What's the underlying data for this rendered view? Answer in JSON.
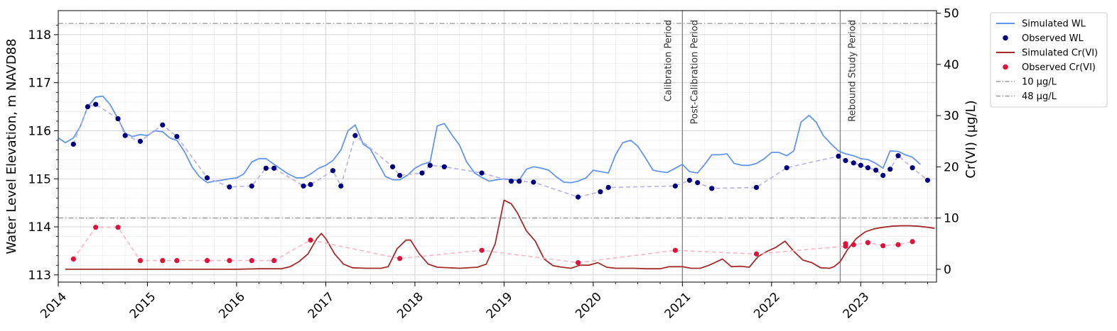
{
  "chart_data": {
    "type": "line",
    "x_axis": {
      "range": [
        2014.0,
        2023.85
      ],
      "ticks": [
        2014,
        2015,
        2016,
        2017,
        2018,
        2019,
        2020,
        2021,
        2022,
        2023
      ],
      "tick_labels": [
        "2014",
        "2015",
        "2016",
        "2017",
        "2018",
        "2019",
        "2020",
        "2021",
        "2022",
        "2023"
      ],
      "label": ""
    },
    "y_left": {
      "label": "Water Level Elevation, m NAVD88",
      "range": [
        112.85,
        118.5
      ],
      "ticks": [
        113,
        114,
        115,
        116,
        117,
        118
      ],
      "tick_labels": [
        "113",
        "114",
        "115",
        "116",
        "117",
        "118"
      ]
    },
    "y_right": {
      "label": "Cr(VI) (µg/L)",
      "range": [
        -2.5,
        50.5
      ],
      "ticks": [
        0,
        10,
        20,
        30,
        40,
        50
      ],
      "tick_labels": [
        "0",
        "10",
        "20",
        "30",
        "40",
        "50"
      ]
    },
    "grid": true,
    "legend_position": "outside-right",
    "periods": [
      {
        "label": "Calibration Period",
        "x": 2021.0,
        "side": "left"
      },
      {
        "label": "Post-Calibration Period",
        "x": 2021.0,
        "side": "right"
      },
      {
        "label": "Rebound Study Period",
        "x": 2022.77,
        "side": "right"
      }
    ],
    "reference_lines": [
      {
        "name": "10 µg/L",
        "value": 10,
        "color": "#888888"
      },
      {
        "name": "48 µg/L",
        "value": 48,
        "color": "#888888"
      }
    ],
    "series": [
      {
        "name": "Simulated WL",
        "kind": "line",
        "axis": "left",
        "color": "#6495ed",
        "x": [
          2014.0,
          2014.08,
          2014.17,
          2014.25,
          2014.33,
          2014.42,
          2014.5,
          2014.58,
          2014.67,
          2014.75,
          2014.83,
          2014.92,
          2015.0,
          2015.08,
          2015.17,
          2015.25,
          2015.33,
          2015.42,
          2015.5,
          2015.58,
          2015.67,
          2015.75,
          2015.83,
          2015.92,
          2016.0,
          2016.08,
          2016.17,
          2016.25,
          2016.33,
          2016.42,
          2016.5,
          2016.58,
          2016.67,
          2016.75,
          2016.83,
          2016.92,
          2017.0,
          2017.08,
          2017.17,
          2017.25,
          2017.33,
          2017.42,
          2017.5,
          2017.58,
          2017.67,
          2017.75,
          2017.83,
          2017.92,
          2018.0,
          2018.08,
          2018.17,
          2018.25,
          2018.33,
          2018.42,
          2018.5,
          2018.58,
          2018.67,
          2018.75,
          2018.83,
          2018.92,
          2019.0,
          2019.08,
          2019.17,
          2019.25,
          2019.33,
          2019.42,
          2019.5,
          2019.58,
          2019.67,
          2019.75,
          2019.83,
          2019.92,
          2020.0,
          2020.08,
          2020.17,
          2020.25,
          2020.33,
          2020.42,
          2020.5,
          2020.58,
          2020.67,
          2020.75,
          2020.83,
          2020.92,
          2021.0,
          2021.08,
          2021.17,
          2021.25,
          2021.33,
          2021.42,
          2021.5,
          2021.58,
          2021.67,
          2021.75,
          2021.83,
          2021.92,
          2022.0,
          2022.08,
          2022.17,
          2022.25,
          2022.33,
          2022.42,
          2022.5,
          2022.58,
          2022.67,
          2022.75,
          2022.83,
          2022.92,
          2023.0,
          2023.08,
          2023.17,
          2023.25,
          2023.33,
          2023.42,
          2023.5,
          2023.58,
          2023.67
        ],
        "y": [
          115.85,
          115.75,
          115.85,
          116.1,
          116.5,
          116.7,
          116.72,
          116.55,
          116.25,
          115.95,
          115.88,
          115.92,
          115.9,
          116.0,
          115.98,
          115.85,
          115.8,
          115.55,
          115.25,
          115.05,
          114.92,
          114.95,
          114.97,
          115.0,
          115.02,
          115.1,
          115.35,
          115.42,
          115.42,
          115.3,
          115.2,
          115.1,
          115.02,
          115.02,
          115.1,
          115.22,
          115.28,
          115.38,
          115.6,
          116.0,
          116.12,
          115.72,
          115.62,
          115.35,
          115.05,
          114.98,
          114.98,
          115.08,
          115.22,
          115.3,
          115.35,
          116.1,
          116.15,
          115.9,
          115.7,
          115.35,
          115.12,
          115.03,
          114.95,
          114.98,
          115.0,
          114.98,
          114.97,
          115.2,
          115.25,
          115.22,
          115.18,
          115.05,
          114.93,
          114.92,
          114.95,
          115.02,
          115.18,
          115.15,
          115.12,
          115.5,
          115.75,
          115.8,
          115.68,
          115.45,
          115.18,
          115.15,
          115.13,
          115.22,
          115.3,
          115.15,
          115.12,
          115.3,
          115.5,
          115.5,
          115.52,
          115.32,
          115.28,
          115.28,
          115.32,
          115.42,
          115.55,
          115.55,
          115.48,
          115.58,
          116.18,
          116.32,
          116.18,
          115.9,
          115.72,
          115.58,
          115.52,
          115.48,
          115.42,
          115.4,
          115.32,
          115.22,
          115.58,
          115.57,
          115.5,
          115.45,
          115.3
        ]
      },
      {
        "name": "Observed WL",
        "kind": "scatter",
        "axis": "left",
        "color": "#000080",
        "connector_color": "#b6b3e0",
        "x": [
          2014.17,
          2014.33,
          2014.42,
          2014.67,
          2014.75,
          2014.92,
          2015.17,
          2015.33,
          2015.67,
          2015.92,
          2016.17,
          2016.33,
          2016.42,
          2016.75,
          2016.83,
          2017.08,
          2017.17,
          2017.33,
          2017.75,
          2017.83,
          2018.08,
          2018.17,
          2018.33,
          2018.75,
          2019.08,
          2019.17,
          2019.33,
          2019.83,
          2020.08,
          2020.17,
          2020.92,
          2021.08,
          2021.17,
          2021.33,
          2021.83,
          2022.17,
          2022.75,
          2022.83,
          2022.92,
          2023.0,
          2023.08,
          2023.17,
          2023.25,
          2023.33,
          2023.42,
          2023.58,
          2023.75
        ],
        "y": [
          115.72,
          116.5,
          116.55,
          116.25,
          115.9,
          115.78,
          116.12,
          115.88,
          115.02,
          114.83,
          114.85,
          115.22,
          115.22,
          114.85,
          114.88,
          115.17,
          114.85,
          115.9,
          115.25,
          115.07,
          115.12,
          115.28,
          115.25,
          115.12,
          114.95,
          114.95,
          114.93,
          114.62,
          114.73,
          114.82,
          114.85,
          114.97,
          114.92,
          114.8,
          114.82,
          115.23,
          115.47,
          115.38,
          115.33,
          115.28,
          115.23,
          115.18,
          115.07,
          115.2,
          115.48,
          115.23,
          114.97
        ]
      },
      {
        "name": "Simulated Cr(VI)",
        "kind": "line",
        "axis": "right",
        "color": "#a52a2a",
        "x": [
          2014.08,
          2014.25,
          2014.5,
          2014.75,
          2015.0,
          2015.5,
          2016.0,
          2016.25,
          2016.5,
          2016.6,
          2016.7,
          2016.8,
          2016.9,
          2016.95,
          2017.0,
          2017.1,
          2017.2,
          2017.3,
          2017.45,
          2017.62,
          2017.7,
          2017.8,
          2017.9,
          2017.95,
          2018.05,
          2018.15,
          2018.25,
          2018.5,
          2018.7,
          2018.8,
          2018.9,
          2019.0,
          2019.08,
          2019.15,
          2019.25,
          2019.35,
          2019.45,
          2019.55,
          2019.65,
          2019.75,
          2019.85,
          2019.95,
          2020.05,
          2020.15,
          2020.25,
          2020.45,
          2020.6,
          2020.75,
          2020.85,
          2021.0,
          2021.1,
          2021.2,
          2021.3,
          2021.45,
          2021.55,
          2021.65,
          2021.75,
          2021.85,
          2021.95,
          2022.05,
          2022.15,
          2022.25,
          2022.35,
          2022.45,
          2022.55,
          2022.65,
          2022.7,
          2022.77,
          2022.85,
          2022.95,
          2023.05,
          2023.15,
          2023.25,
          2023.35,
          2023.45,
          2023.55,
          2023.65,
          2023.75,
          2023.83
        ],
        "y": [
          0,
          0,
          0,
          0,
          0,
          0,
          0,
          0.1,
          0.1,
          0.5,
          1.5,
          3,
          6,
          7,
          6,
          3,
          1,
          0.3,
          0.2,
          0.2,
          0.5,
          4,
          5.7,
          5.7,
          3,
          1,
          0.4,
          0.2,
          0.4,
          1,
          5,
          13.5,
          12.8,
          11,
          7.5,
          5.5,
          2,
          0.7,
          0.4,
          0.2,
          0.8,
          0.8,
          1.3,
          0.4,
          0.2,
          0.2,
          0.1,
          0.1,
          0.5,
          0.5,
          0.2,
          0.2,
          0.8,
          2,
          0.5,
          0.6,
          0.4,
          2.5,
          3.5,
          4.3,
          5.5,
          3.5,
          1.8,
          1.3,
          0.3,
          0.2,
          0.5,
          1.5,
          3.8,
          6,
          7.3,
          7.9,
          8.2,
          8.4,
          8.5,
          8.5,
          8.4,
          8.2,
          8
        ]
      },
      {
        "name": "Observed Cr(VI)",
        "kind": "scatter",
        "axis": "right",
        "color": "#dc143c",
        "connector_color": "#f4b8c5",
        "x": [
          2014.17,
          2014.42,
          2014.67,
          2014.92,
          2015.17,
          2015.33,
          2015.67,
          2015.92,
          2016.17,
          2016.42,
          2016.83,
          2017.83,
          2018.75,
          2019.83,
          2020.92,
          2021.83,
          2022.83,
          2022.83,
          2022.92,
          2023.08,
          2023.25,
          2023.42,
          2023.58
        ],
        "y": [
          2,
          8.2,
          8.2,
          1.7,
          1.7,
          1.7,
          1.7,
          1.7,
          1.7,
          1.7,
          5.7,
          2.1,
          3.7,
          1.3,
          3.7,
          3.0,
          4.5,
          5.0,
          4.8,
          5.2,
          4.6,
          4.8,
          5.4
        ]
      }
    ],
    "legend": [
      {
        "label": "Simulated WL",
        "type": "line",
        "color": "#6495ed"
      },
      {
        "label": "Observed WL",
        "type": "marker",
        "color": "#000080"
      },
      {
        "label": "Simulated Cr(VI)",
        "type": "line",
        "color": "#a52a2a"
      },
      {
        "label": "Observed Cr(VI)",
        "type": "marker",
        "color": "#dc143c"
      },
      {
        "label": "10 µg/L",
        "type": "dashdot",
        "color": "#888888"
      },
      {
        "label": "48 µg/L",
        "type": "dashdot",
        "color": "#888888"
      }
    ]
  }
}
